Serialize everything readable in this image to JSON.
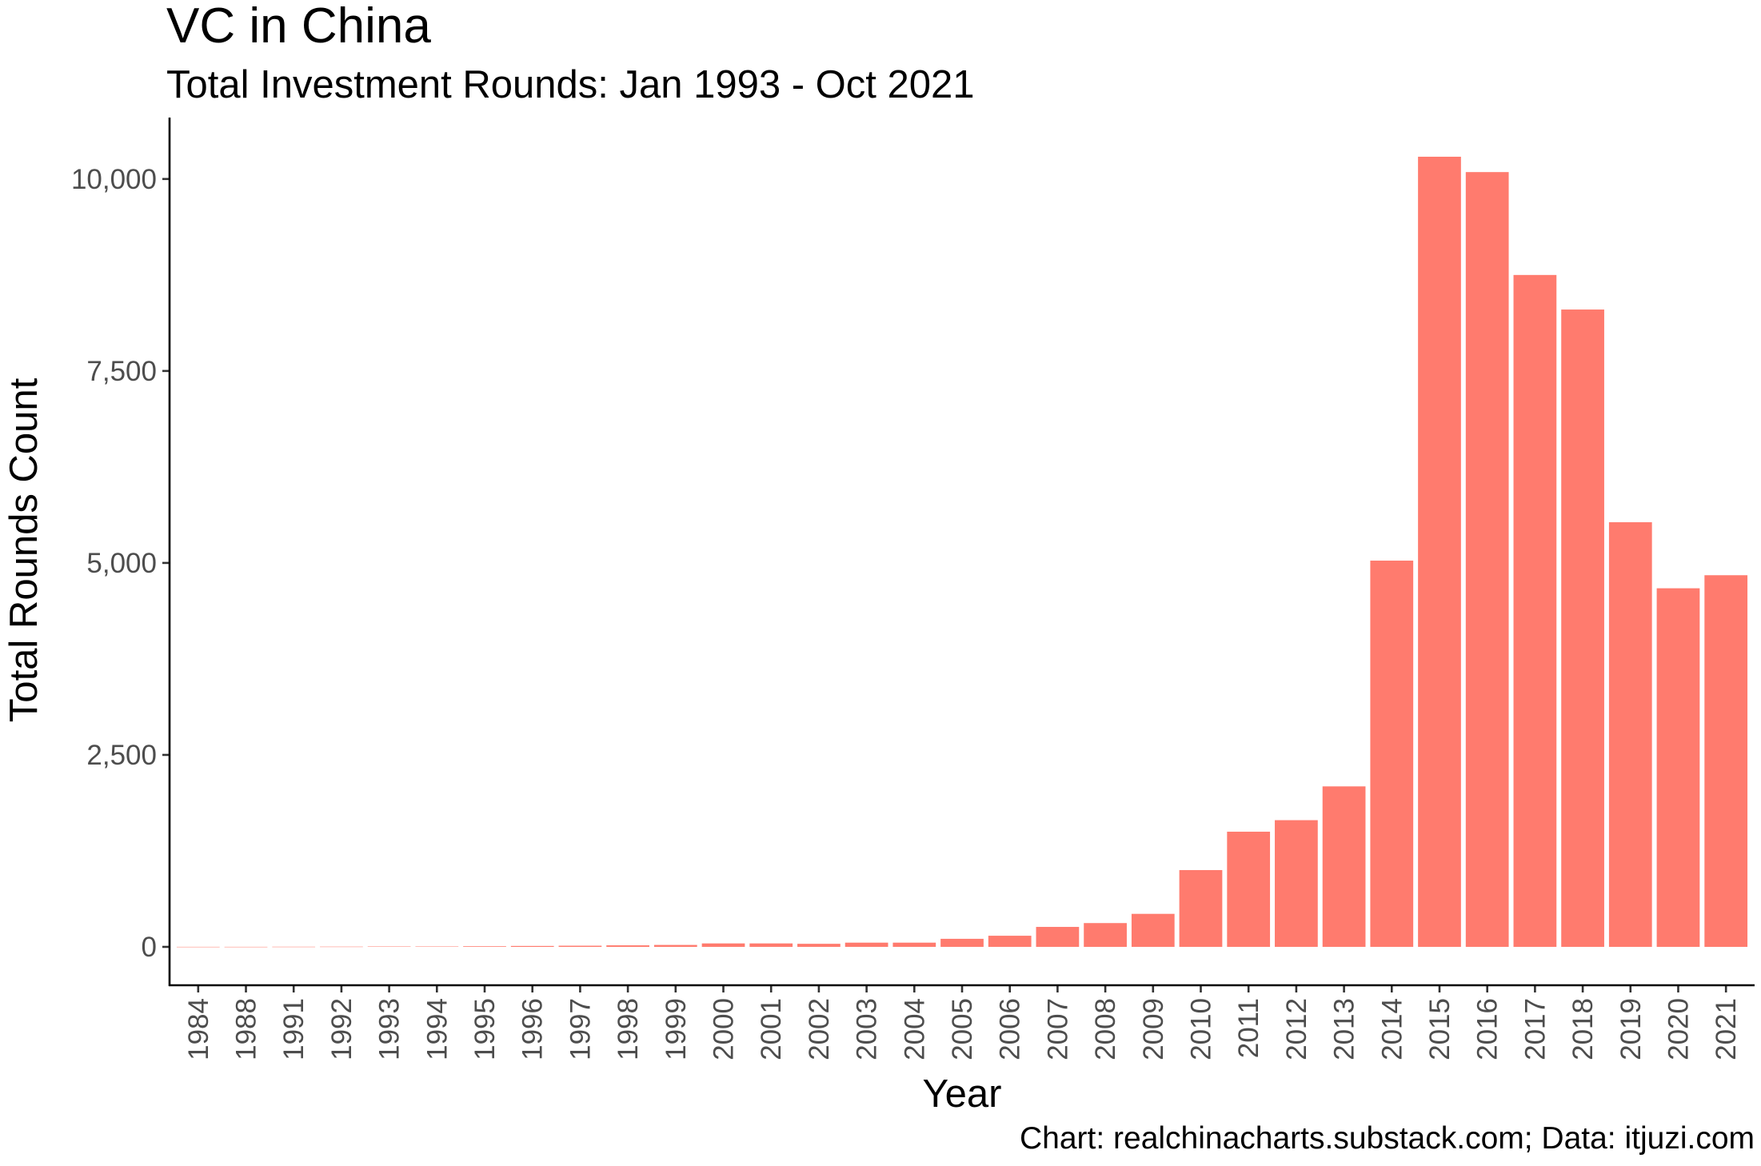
{
  "chart_data": {
    "type": "bar",
    "title": "VC in China",
    "subtitle": "Total Investment Rounds: Jan 1993 - Oct 2021",
    "xlabel": "Year",
    "ylabel": "Total Rounds Count",
    "caption": "Chart: realchinacharts.substack.com; Data: itjuzi.com",
    "categories": [
      "1984",
      "1988",
      "1991",
      "1992",
      "1993",
      "1994",
      "1995",
      "1996",
      "1997",
      "1998",
      "1999",
      "2000",
      "2001",
      "2002",
      "2003",
      "2004",
      "2005",
      "2006",
      "2007",
      "2008",
      "2009",
      "2010",
      "2011",
      "2012",
      "2013",
      "2014",
      "2015",
      "2016",
      "2017",
      "2018",
      "2019",
      "2020",
      "2021"
    ],
    "values": [
      1,
      1,
      2,
      3,
      5,
      5,
      8,
      12,
      15,
      20,
      25,
      45,
      45,
      40,
      55,
      55,
      105,
      145,
      260,
      310,
      430,
      1000,
      1500,
      1650,
      2090,
      5030,
      10290,
      10090,
      8750,
      8300,
      5530,
      4670,
      4840
    ],
    "ylim": [
      -500,
      10800
    ],
    "yticks": [
      0,
      2500,
      5000,
      7500,
      10000
    ],
    "ytick_labels": [
      "0",
      "2,500",
      "5,000",
      "7,500",
      "10,000"
    ],
    "bar_color": "#FF7B6E",
    "grid": false,
    "legend": "none"
  }
}
